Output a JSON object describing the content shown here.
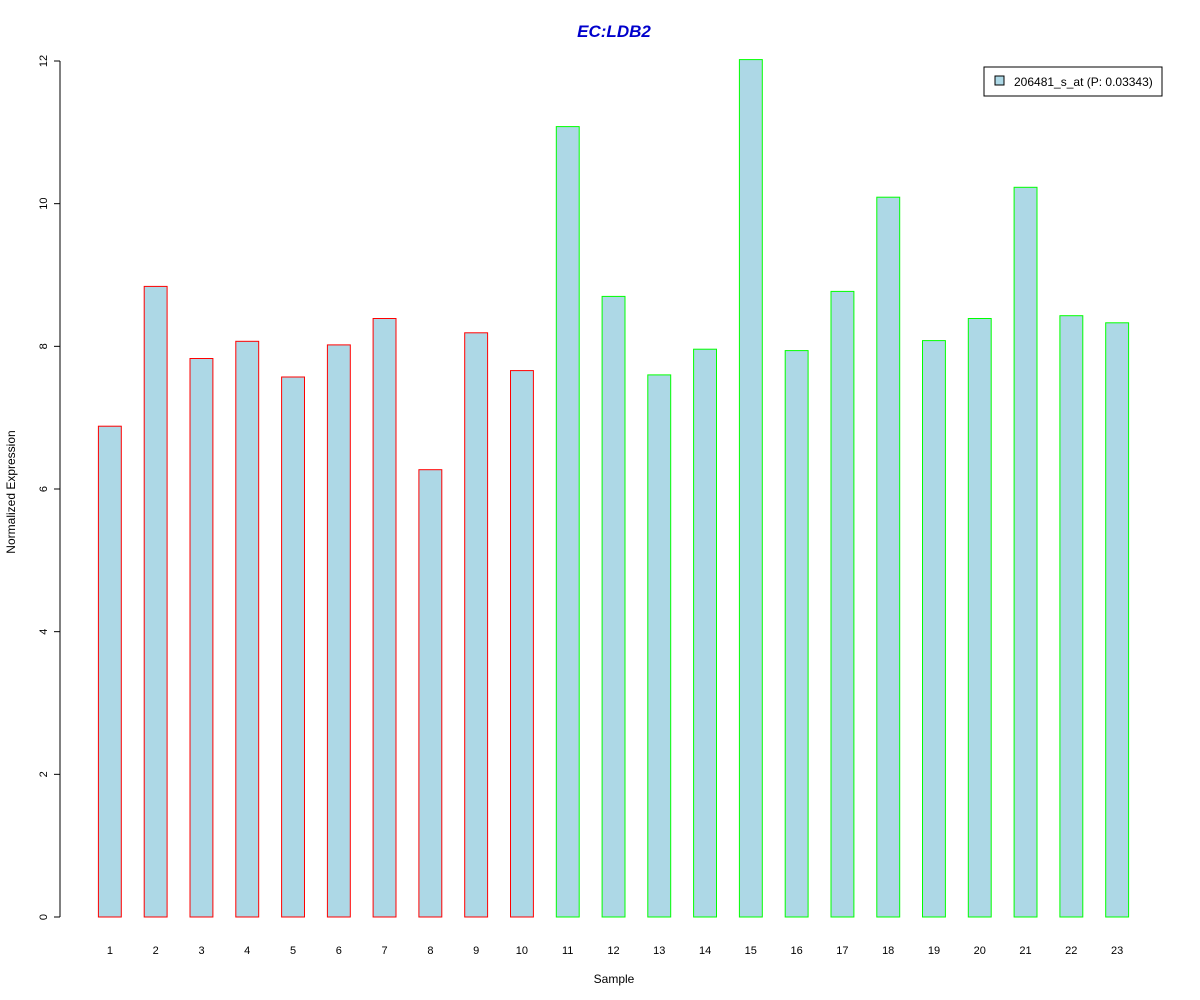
{
  "colors": {
    "title": "#0000cc",
    "bar_fill": "#add8e6",
    "group1_border": "#ff0000",
    "group2_border": "#00ff00",
    "axis": "#000000"
  },
  "chart_data": {
    "type": "bar",
    "title": "EC:LDB2",
    "xlabel": "Sample",
    "ylabel": "Normalized Expression",
    "ylim": [
      0,
      12
    ],
    "yticks": [
      0,
      2,
      4,
      6,
      8,
      10,
      12
    ],
    "grid": false,
    "legend": {
      "position": "top-right",
      "entries": [
        "206481_s_at (P: 0.03343)"
      ]
    },
    "categories": [
      "1",
      "2",
      "3",
      "4",
      "5",
      "6",
      "7",
      "8",
      "9",
      "10",
      "11",
      "12",
      "13",
      "14",
      "15",
      "16",
      "17",
      "18",
      "19",
      "20",
      "21",
      "22",
      "23"
    ],
    "series": [
      {
        "name": "206481_s_at (P: 0.03343)",
        "values": [
          6.88,
          8.84,
          7.83,
          8.07,
          7.57,
          8.02,
          8.39,
          6.27,
          8.19,
          7.66,
          11.08,
          8.7,
          7.6,
          7.96,
          12.02,
          7.94,
          8.77,
          10.09,
          8.08,
          8.39,
          10.23,
          8.43,
          8.33
        ],
        "groups": [
          1,
          1,
          1,
          1,
          1,
          1,
          1,
          1,
          1,
          1,
          2,
          2,
          2,
          2,
          2,
          2,
          2,
          2,
          2,
          2,
          2,
          2,
          2
        ]
      }
    ]
  }
}
